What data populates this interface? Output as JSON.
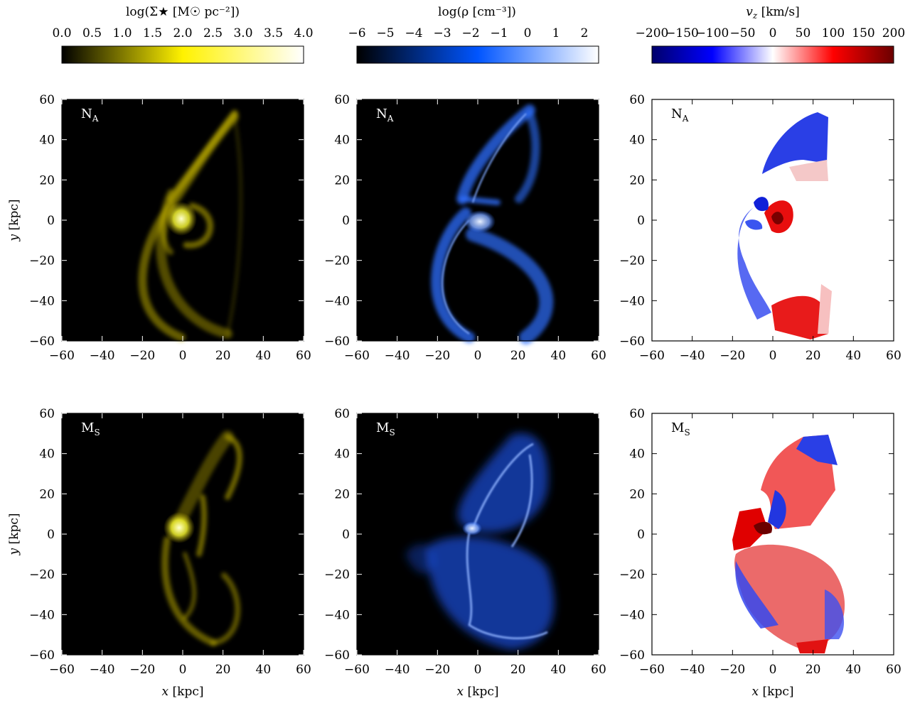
{
  "figure": {
    "colorbars": [
      {
        "title": "log(Σ★ [M☉ pc⁻²])",
        "ticks": [
          "0.0",
          "0.5",
          "1.0",
          "1.5",
          "2.0",
          "2.5",
          "3.0",
          "3.5",
          "4.0"
        ],
        "range": [
          0,
          4
        ],
        "colors": [
          "#000000",
          "#fff200",
          "#ffffff"
        ]
      },
      {
        "title": "log(ρ [cm⁻³])",
        "ticks": [
          "−6",
          "−5",
          "−4",
          "−3",
          "−2",
          "−1",
          "0",
          "1",
          "2"
        ],
        "range": [
          -6,
          2.5
        ],
        "colors": [
          "#000000",
          "#0055ff",
          "#ffffff"
        ]
      },
      {
        "title": "v_z [km/s]",
        "ticks": [
          "−200",
          "−150",
          "−100",
          "−50",
          "0",
          "50",
          "100",
          "150",
          "200"
        ],
        "range": [
          -200,
          200
        ],
        "colors": [
          "#00006b",
          "#0000ff",
          "#ffffff",
          "#ff0000",
          "#6b0000"
        ]
      }
    ],
    "rows": [
      {
        "label": "N",
        "subscript": "A"
      },
      {
        "label": "M",
        "subscript": "S"
      }
    ],
    "xlabel": "x [kpc]",
    "ylabel": "y [kpc]",
    "xticks": [
      "−60",
      "−40",
      "−20",
      "0",
      "20",
      "40",
      "60"
    ],
    "yticks": [
      "60",
      "40",
      "20",
      "0",
      "−20",
      "−40",
      "−60"
    ]
  },
  "chart_data": [
    {
      "type": "heatmap",
      "panel": "stellar-surface-density",
      "row": "N_A",
      "xlim": [
        -60,
        60
      ],
      "ylim": [
        -60,
        60
      ],
      "background": "#000000"
    },
    {
      "type": "heatmap",
      "panel": "gas-density",
      "row": "N_A",
      "xlim": [
        -60,
        60
      ],
      "ylim": [
        -60,
        60
      ],
      "background": "#000000"
    },
    {
      "type": "heatmap",
      "panel": "vertical-velocity",
      "row": "N_A",
      "xlim": [
        -60,
        60
      ],
      "ylim": [
        -60,
        60
      ],
      "background": "#ffffff"
    },
    {
      "type": "heatmap",
      "panel": "stellar-surface-density",
      "row": "M_S",
      "xlim": [
        -60,
        60
      ],
      "ylim": [
        -60,
        60
      ],
      "background": "#000000"
    },
    {
      "type": "heatmap",
      "panel": "gas-density",
      "row": "M_S",
      "xlim": [
        -60,
        60
      ],
      "ylim": [
        -60,
        60
      ],
      "background": "#000000"
    },
    {
      "type": "heatmap",
      "panel": "vertical-velocity",
      "row": "M_S",
      "xlim": [
        -60,
        60
      ],
      "ylim": [
        -60,
        60
      ],
      "background": "#ffffff"
    }
  ]
}
